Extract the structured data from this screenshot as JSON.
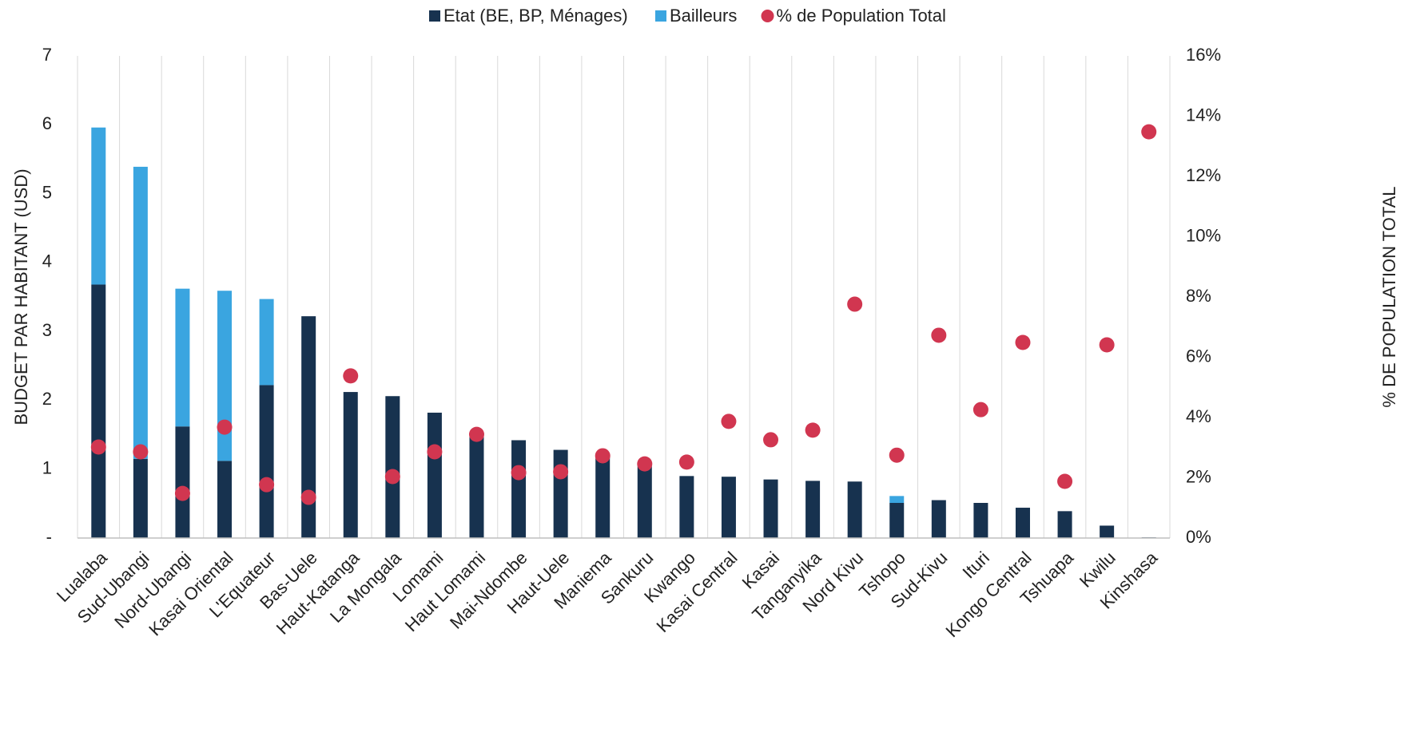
{
  "chart_data": {
    "type": "bar",
    "stacked": true,
    "ylabel": "BUDGET PAR HABITANT (USD)",
    "y2label": "% DE POPULATION TOTAL",
    "categories": [
      "Lualaba",
      "Sud-Ubangi",
      "Nord-Ubangi",
      "Kasai Oriental",
      "L'Equateur",
      "Bas-Uele",
      "Haut-Katanga",
      "La  Mongala",
      "Lomami",
      "Haut Lomami",
      "Mai-Ndombe",
      "Haut-Uele",
      "Maniema",
      "Sankuru",
      "Kwango",
      "Kasai Central",
      "Kasai",
      "Tanganyika",
      "Nord Kivu",
      "Tshopo",
      "Sud-Kivu",
      "Ituri",
      "Kongo Central",
      "Tshuapa",
      "Kwilu",
      "Kinshasa"
    ],
    "series": [
      {
        "name": "Etat (BE, BP, Ménages)",
        "color": "#17324f",
        "type": "bar",
        "values": [
          3.68,
          1.15,
          1.62,
          1.12,
          2.22,
          3.22,
          2.12,
          2.06,
          1.82,
          1.48,
          1.42,
          1.28,
          1.18,
          1.05,
          0.9,
          0.89,
          0.85,
          0.83,
          0.82,
          0.51,
          0.55,
          0.51,
          0.44,
          0.39,
          0.18,
          0.01
        ]
      },
      {
        "name": "Bailleurs",
        "color": "#3aa5e0",
        "type": "bar",
        "values": [
          2.28,
          4.24,
          2.0,
          2.47,
          1.25,
          0,
          0,
          0,
          0,
          0,
          0,
          0,
          0,
          0,
          0,
          0,
          0,
          0,
          0,
          0.1,
          0,
          0,
          0,
          0,
          0,
          0
        ]
      },
      {
        "name": "% de Population Total",
        "color": "#d13650",
        "type": "scatter",
        "axis": "y2",
        "values": [
          3.02,
          2.86,
          1.48,
          3.68,
          1.77,
          1.35,
          5.38,
          2.04,
          2.86,
          3.44,
          2.17,
          2.2,
          2.73,
          2.46,
          2.52,
          3.87,
          3.26,
          3.58,
          7.76,
          2.75,
          6.73,
          4.26,
          6.49,
          1.88,
          6.41,
          13.48
        ]
      }
    ],
    "ylim": [
      0,
      7
    ],
    "yticks": [
      {
        "value": 0,
        "label": "-"
      },
      1,
      2,
      3,
      4,
      5,
      6,
      7
    ],
    "y2lim": [
      0,
      16
    ],
    "y2ticks": [
      {
        "value": 0,
        "label": "0%"
      },
      {
        "value": 2,
        "label": "2%"
      },
      {
        "value": 4,
        "label": "4%"
      },
      {
        "value": 6,
        "label": "6%"
      },
      {
        "value": 8,
        "label": "8%"
      },
      {
        "value": 10,
        "label": "10%"
      },
      {
        "value": 12,
        "label": "12%"
      },
      {
        "value": 14,
        "label": "14%"
      },
      {
        "value": 16,
        "label": "16%"
      }
    ],
    "legend": "top"
  }
}
